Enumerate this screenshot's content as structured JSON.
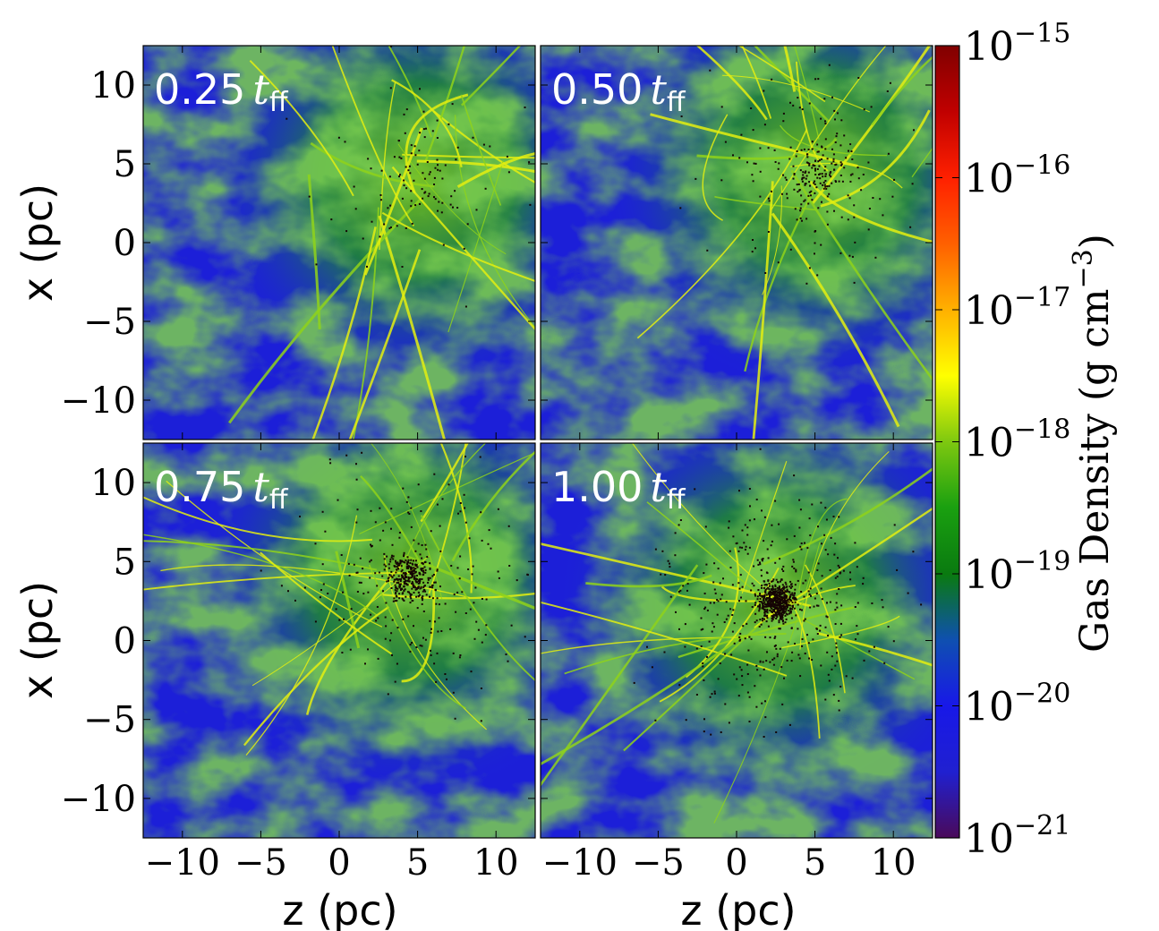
{
  "chart_data": {
    "type": "heatmap",
    "colorbar": {
      "label": "Gas Density (g cm",
      "label_exponent": "−3",
      "label_close": ")",
      "scale": "log",
      "range": [
        1e-21,
        1e-15
      ],
      "tick_base": "10",
      "tick_exponents": [
        "−21",
        "−20",
        "−19",
        "−18",
        "−17",
        "−16",
        "−15"
      ],
      "colors": [
        "#4a0a5a",
        "#2020d0",
        "#1818e8",
        "#0f50b0",
        "#0a7a10",
        "#1aa010",
        "#7ec810",
        "#ffff00",
        "#ffb000",
        "#ff6000",
        "#ff2000",
        "#c00000",
        "#800000"
      ]
    },
    "panels": [
      {
        "label_value": "0.25",
        "label_symbol": "t",
        "label_sub": "ff",
        "particles": 120,
        "cx": 5.0,
        "cy": 4.0,
        "spread": 5.0
      },
      {
        "label_value": "0.50",
        "label_symbol": "t",
        "label_sub": "ff",
        "particles": 260,
        "cx": 5.0,
        "cy": 4.5,
        "spread": 3.5
      },
      {
        "label_value": "0.75",
        "label_symbol": "t",
        "label_sub": "ff",
        "particles": 520,
        "cx": 4.5,
        "cy": 4.0,
        "spread": 2.5
      },
      {
        "label_value": "1.00",
        "label_symbol": "t",
        "label_sub": "ff",
        "particles": 900,
        "cx": 2.5,
        "cy": 2.5,
        "spread": 2.0
      }
    ],
    "xlabel": "z  (pc)",
    "ylabel": "x  (pc)",
    "xlim": [
      -12.5,
      12.5
    ],
    "ylim": [
      -12.5,
      12.5
    ],
    "xticks": [
      "−10",
      "−5",
      "0",
      "5",
      "10"
    ],
    "yticks": [
      "10",
      "5",
      "0",
      "−5",
      "−10"
    ],
    "xtick_values": [
      -10,
      -5,
      0,
      5,
      10
    ],
    "ytick_values": [
      10,
      5,
      0,
      -5,
      -10
    ],
    "grid": false
  }
}
